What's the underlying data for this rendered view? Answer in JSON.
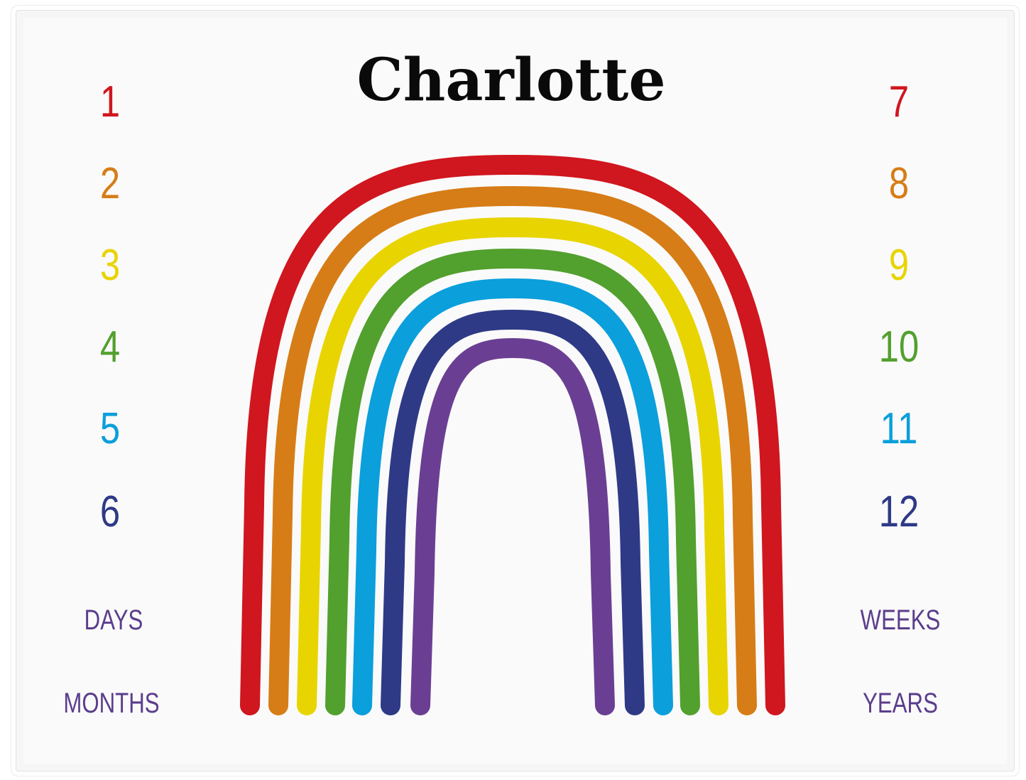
{
  "name": "Charlotte",
  "numbers_left": [
    {
      "text": "1",
      "color": "#d0161e"
    },
    {
      "text": "2",
      "color": "#d67d17"
    },
    {
      "text": "3",
      "color": "#e8d400"
    },
    {
      "text": "4",
      "color": "#52a02e"
    },
    {
      "text": "5",
      "color": "#0b9fdb"
    },
    {
      "text": "6",
      "color": "#2e3a86"
    }
  ],
  "numbers_right": [
    {
      "text": "7",
      "color": "#d0161e"
    },
    {
      "text": "8",
      "color": "#d67d17"
    },
    {
      "text": "9",
      "color": "#e8d400"
    },
    {
      "text": "10",
      "color": "#52a02e"
    },
    {
      "text": "11",
      "color": "#0b9fdb"
    },
    {
      "text": "12",
      "color": "#2e3a86"
    }
  ],
  "labels": {
    "days": "DAYS",
    "months": "MONTHS",
    "weeks": "WEEKS",
    "years": "YEARS"
  },
  "rainbow_colors": [
    "#d0161e",
    "#d67d17",
    "#e8d400",
    "#52a02e",
    "#0b9fdb",
    "#2e3a86",
    "#6a3f93"
  ],
  "label_color": "#5b3d8c"
}
